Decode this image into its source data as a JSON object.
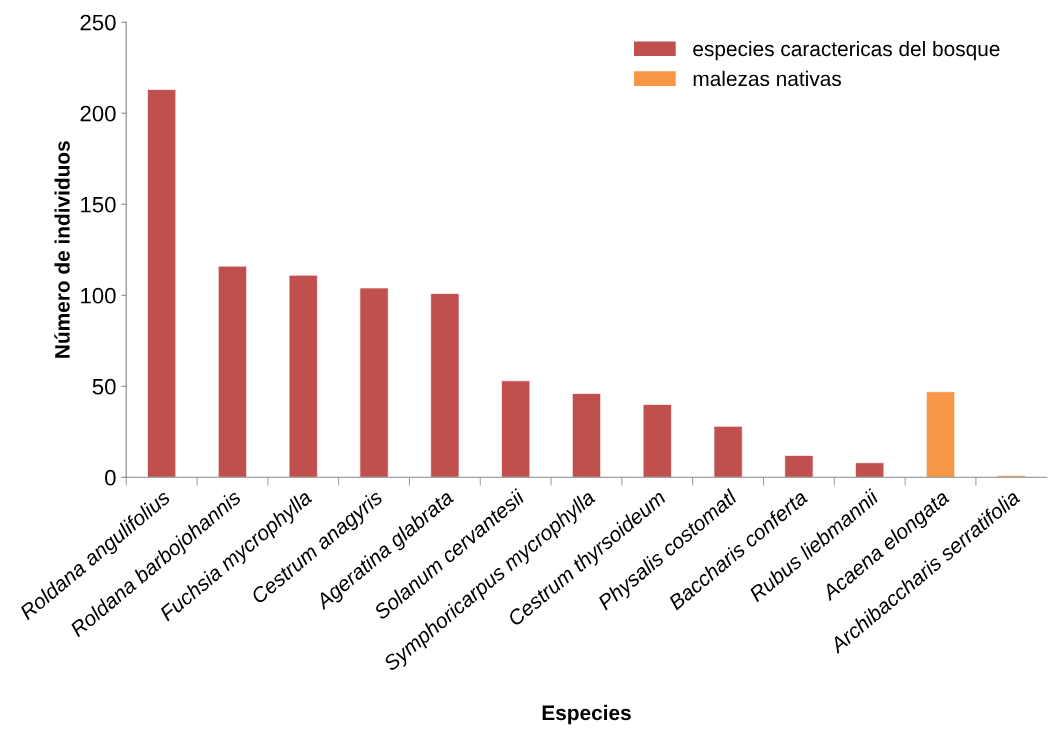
{
  "chart_data": {
    "type": "bar",
    "xlabel": "Especies",
    "ylabel": "Número de individuos",
    "categories": [
      "Roldana angulifolius",
      "Roldana barbojohannis",
      "Fuchsia mycrophylla",
      "Cestrum anagyris",
      "Ageratina glabrata",
      "Solanum cervantesii",
      "Symphoricarpus mycrophylla",
      "Cestrum thyrsoideum",
      "Physalis costomatl",
      "Baccharis conferta",
      "Rubus liebmannii",
      "Acaena elongata",
      "Archibaccharis serratifolia"
    ],
    "series": [
      {
        "name": "especies caractericas del bosque",
        "color": "#c0504d",
        "values": [
          213,
          116,
          111,
          104,
          101,
          53,
          46,
          40,
          28,
          12,
          8,
          null,
          null
        ]
      },
      {
        "name": "malezas nativas",
        "color": "#f79646",
        "values": [
          null,
          null,
          null,
          null,
          null,
          null,
          null,
          null,
          null,
          null,
          null,
          47,
          1
        ]
      }
    ],
    "ylim": [
      0,
      250
    ],
    "yticks": [
      0,
      50,
      100,
      150,
      200,
      250
    ],
    "grid": false,
    "legend": "top right"
  }
}
